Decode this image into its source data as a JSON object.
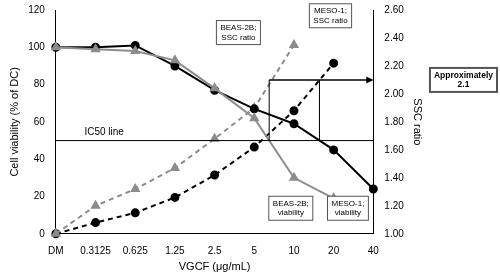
{
  "chart_data": {
    "type": "line",
    "x_label": "VGCF (μg/mL)",
    "y_label": "Cell viability (% of DC)",
    "y2_label": "SSC ratio",
    "categories": [
      "DM",
      "0.3125",
      "0.625",
      "1.25",
      "2.5",
      "5",
      "10",
      "20",
      "40"
    ],
    "series": [
      {
        "name": "BEAS-2B; viability",
        "color": "#8c8c8c",
        "marker": "triangle",
        "line_style": "solid",
        "values": [
          100,
          99,
          98,
          93,
          78,
          62,
          30,
          19,
          null
        ]
      },
      {
        "name": "MESO-1; viability",
        "color": "#000000",
        "marker": "circle",
        "line_style": "solid",
        "values": [
          100,
          100,
          101,
          90,
          77,
          67,
          59,
          45,
          24
        ]
      },
      {
        "name": "BEAS-2B; SSC ratio",
        "color": "#8c8c8c",
        "marker": "triangle",
        "line_style": "dashed",
        "axis": "y2",
        "values": [
          1.0,
          1.2,
          1.32,
          1.47,
          1.68,
          1.9,
          2.35,
          null,
          null
        ]
      },
      {
        "name": "MESO-1; SSC ratio",
        "color": "#000000",
        "marker": "circle",
        "line_style": "dashed",
        "axis": "y2",
        "values": [
          1.0,
          1.08,
          1.15,
          1.26,
          1.42,
          1.62,
          1.88,
          2.22,
          null
        ]
      }
    ],
    "ylim": [
      0,
      120
    ],
    "yticks": [
      0,
      20,
      40,
      60,
      80,
      100,
      120
    ],
    "y2lim": [
      1.0,
      2.6
    ],
    "y2ticks": [
      {
        "value": 1.0,
        "label": "1.00"
      },
      {
        "value": 1.2,
        "label": "1.20"
      },
      {
        "value": 1.4,
        "label": "1.40"
      },
      {
        "value": 1.6,
        "label": "1.60"
      },
      {
        "value": 1.8,
        "label": "1.80"
      },
      {
        "value": 2.0,
        "label": "2.00"
      },
      {
        "value": 2.2,
        "label": "2.20"
      },
      {
        "value": 2.4,
        "label": "2.40"
      },
      {
        "value": 2.6,
        "label": "2.60"
      }
    ],
    "annotations": [
      {
        "text": "IC50 line",
        "y": 50
      },
      {
        "text": "Approximately 2.1",
        "y2": 2.1
      }
    ],
    "grid": false
  }
}
